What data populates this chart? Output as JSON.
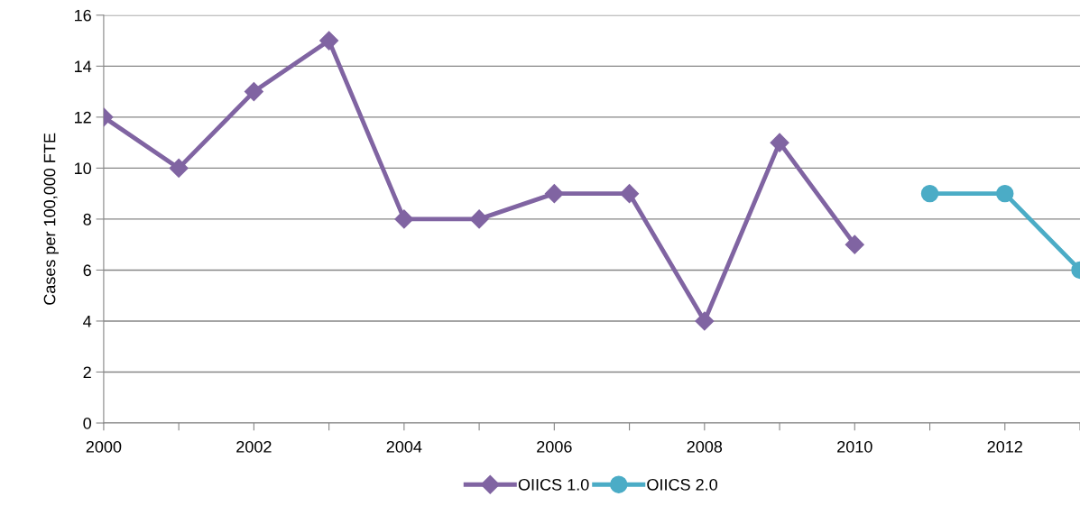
{
  "chart_data": {
    "type": "line",
    "ylabel": "Cases per 100,000 FTE",
    "xlim": [
      2000,
      2013
    ],
    "xticks": [
      2000,
      {
        "value": 2001,
        "label": null
      },
      2002,
      {
        "value": 2003,
        "label": null
      },
      2004,
      {
        "value": 2005,
        "label": null
      },
      2006,
      {
        "value": 2007,
        "label": null
      },
      2008,
      {
        "value": 2009,
        "label": null
      },
      2010,
      {
        "value": 2011,
        "label": null
      },
      2012,
      {
        "value": 2013,
        "label": null
      }
    ],
    "ylim": [
      0,
      16
    ],
    "yticks": [
      0,
      2,
      4,
      6,
      8,
      10,
      12,
      14,
      16
    ],
    "grid": "y",
    "legend": "bottom",
    "line_style": "solid",
    "series": [
      {
        "name": "OIICS 1.0",
        "color": "#8064a2",
        "marker": "diamond",
        "x": [
          2000,
          2001,
          2002,
          2003,
          2004,
          2005,
          2006,
          2007,
          2008,
          2009,
          2010
        ],
        "values": [
          12,
          10,
          13,
          15,
          8,
          8,
          9,
          9,
          4,
          11,
          7
        ]
      },
      {
        "name": "OIICS 2.0",
        "color": "#4bacc6",
        "marker": "circle",
        "x": [
          2011,
          2012,
          2013
        ],
        "values": [
          9,
          9,
          6
        ]
      }
    ]
  }
}
